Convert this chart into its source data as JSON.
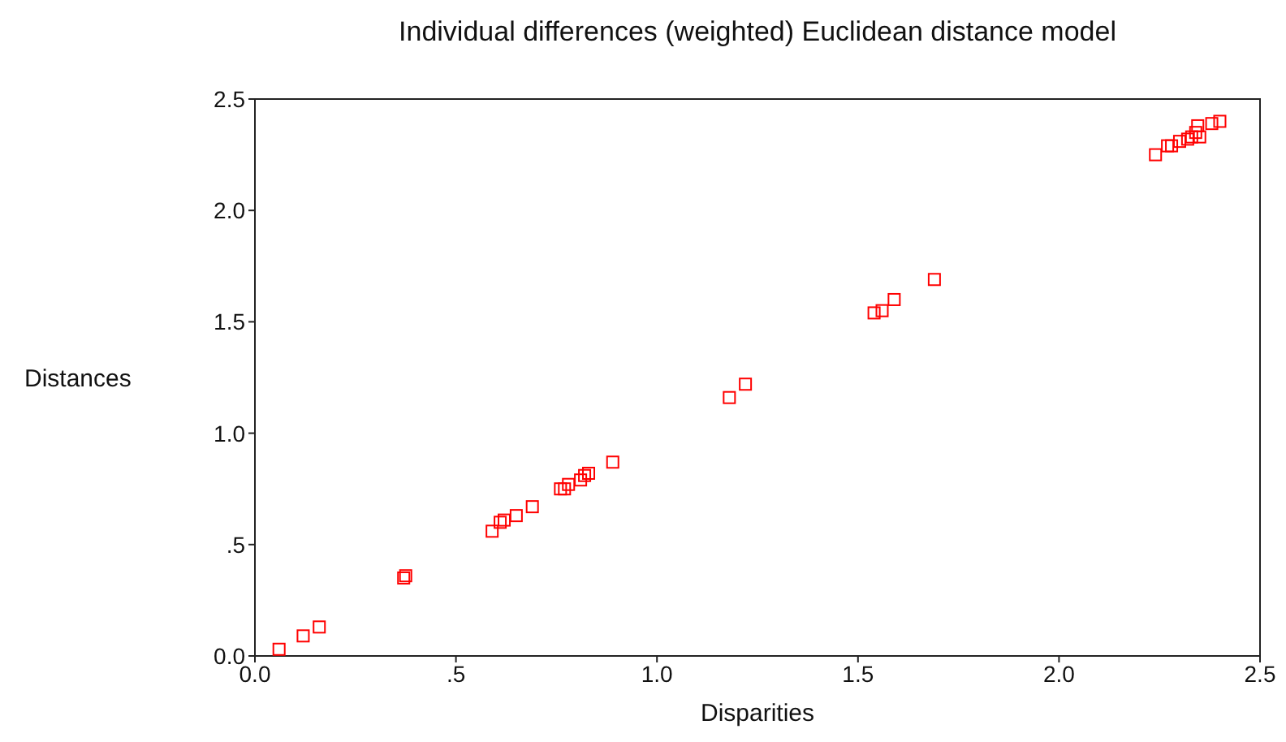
{
  "chart_data": {
    "type": "scatter",
    "title": "Individual differences (weighted) Euclidean distance model",
    "xlabel": "Disparities",
    "ylabel": "Distances",
    "xlim": [
      0,
      2.5
    ],
    "ylim": [
      0,
      2.5
    ],
    "xticks": [
      {
        "value": 0,
        "label": "0.0"
      },
      {
        "value": 0.5,
        "label": ".5"
      },
      {
        "value": 1,
        "label": "1.0"
      },
      {
        "value": 1.5,
        "label": "1.5"
      },
      {
        "value": 2,
        "label": "2.0"
      },
      {
        "value": 2.5,
        "label": "2.5"
      }
    ],
    "yticks": [
      {
        "value": 0,
        "label": "0.0"
      },
      {
        "value": 0.5,
        "label": ".5"
      },
      {
        "value": 1,
        "label": "1.0"
      },
      {
        "value": 1.5,
        "label": "1.5"
      },
      {
        "value": 2,
        "label": "2.0"
      },
      {
        "value": 2.5,
        "label": "2.5"
      }
    ],
    "grid": false,
    "marker": "square",
    "series": [
      {
        "color": "#ff0000",
        "x": [
          0.06,
          0.12,
          0.16,
          0.37,
          0.375,
          0.59,
          0.61,
          0.62,
          0.65,
          0.69,
          0.76,
          0.77,
          0.78,
          0.81,
          0.82,
          0.83,
          0.89,
          1.18,
          1.22,
          1.54,
          1.56,
          1.59,
          1.69,
          2.24,
          2.27,
          2.28,
          2.3,
          2.32,
          2.33,
          2.34,
          2.345,
          2.35,
          2.38,
          2.4
        ],
        "values": [
          0.03,
          0.09,
          0.13,
          0.35,
          0.36,
          0.56,
          0.6,
          0.61,
          0.63,
          0.67,
          0.75,
          0.75,
          0.77,
          0.79,
          0.81,
          0.82,
          0.87,
          1.16,
          1.22,
          1.54,
          1.55,
          1.6,
          1.69,
          2.25,
          2.29,
          2.29,
          2.31,
          2.32,
          2.33,
          2.35,
          2.38,
          2.33,
          2.39,
          2.4
        ]
      }
    ]
  }
}
